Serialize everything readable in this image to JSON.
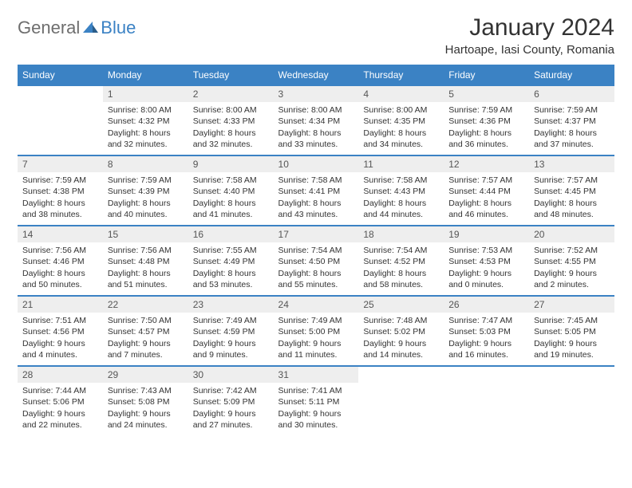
{
  "logo": {
    "general": "General",
    "blue": "Blue"
  },
  "title": "January 2024",
  "location": "Hartoape, Iasi County, Romania",
  "colors": {
    "header_bg": "#3b82c4",
    "header_text": "#ffffff",
    "daynum_bg": "#eeeeee",
    "border": "#3b82c4",
    "body_text": "#333333",
    "logo_grey": "#6e6e6e",
    "logo_blue": "#3b82c4"
  },
  "day_headers": [
    "Sunday",
    "Monday",
    "Tuesday",
    "Wednesday",
    "Thursday",
    "Friday",
    "Saturday"
  ],
  "weeks": [
    [
      null,
      {
        "n": "1",
        "sr": "Sunrise: 8:00 AM",
        "ss": "Sunset: 4:32 PM",
        "d1": "Daylight: 8 hours",
        "d2": "and 32 minutes."
      },
      {
        "n": "2",
        "sr": "Sunrise: 8:00 AM",
        "ss": "Sunset: 4:33 PM",
        "d1": "Daylight: 8 hours",
        "d2": "and 32 minutes."
      },
      {
        "n": "3",
        "sr": "Sunrise: 8:00 AM",
        "ss": "Sunset: 4:34 PM",
        "d1": "Daylight: 8 hours",
        "d2": "and 33 minutes."
      },
      {
        "n": "4",
        "sr": "Sunrise: 8:00 AM",
        "ss": "Sunset: 4:35 PM",
        "d1": "Daylight: 8 hours",
        "d2": "and 34 minutes."
      },
      {
        "n": "5",
        "sr": "Sunrise: 7:59 AM",
        "ss": "Sunset: 4:36 PM",
        "d1": "Daylight: 8 hours",
        "d2": "and 36 minutes."
      },
      {
        "n": "6",
        "sr": "Sunrise: 7:59 AM",
        "ss": "Sunset: 4:37 PM",
        "d1": "Daylight: 8 hours",
        "d2": "and 37 minutes."
      }
    ],
    [
      {
        "n": "7",
        "sr": "Sunrise: 7:59 AM",
        "ss": "Sunset: 4:38 PM",
        "d1": "Daylight: 8 hours",
        "d2": "and 38 minutes."
      },
      {
        "n": "8",
        "sr": "Sunrise: 7:59 AM",
        "ss": "Sunset: 4:39 PM",
        "d1": "Daylight: 8 hours",
        "d2": "and 40 minutes."
      },
      {
        "n": "9",
        "sr": "Sunrise: 7:58 AM",
        "ss": "Sunset: 4:40 PM",
        "d1": "Daylight: 8 hours",
        "d2": "and 41 minutes."
      },
      {
        "n": "10",
        "sr": "Sunrise: 7:58 AM",
        "ss": "Sunset: 4:41 PM",
        "d1": "Daylight: 8 hours",
        "d2": "and 43 minutes."
      },
      {
        "n": "11",
        "sr": "Sunrise: 7:58 AM",
        "ss": "Sunset: 4:43 PM",
        "d1": "Daylight: 8 hours",
        "d2": "and 44 minutes."
      },
      {
        "n": "12",
        "sr": "Sunrise: 7:57 AM",
        "ss": "Sunset: 4:44 PM",
        "d1": "Daylight: 8 hours",
        "d2": "and 46 minutes."
      },
      {
        "n": "13",
        "sr": "Sunrise: 7:57 AM",
        "ss": "Sunset: 4:45 PM",
        "d1": "Daylight: 8 hours",
        "d2": "and 48 minutes."
      }
    ],
    [
      {
        "n": "14",
        "sr": "Sunrise: 7:56 AM",
        "ss": "Sunset: 4:46 PM",
        "d1": "Daylight: 8 hours",
        "d2": "and 50 minutes."
      },
      {
        "n": "15",
        "sr": "Sunrise: 7:56 AM",
        "ss": "Sunset: 4:48 PM",
        "d1": "Daylight: 8 hours",
        "d2": "and 51 minutes."
      },
      {
        "n": "16",
        "sr": "Sunrise: 7:55 AM",
        "ss": "Sunset: 4:49 PM",
        "d1": "Daylight: 8 hours",
        "d2": "and 53 minutes."
      },
      {
        "n": "17",
        "sr": "Sunrise: 7:54 AM",
        "ss": "Sunset: 4:50 PM",
        "d1": "Daylight: 8 hours",
        "d2": "and 55 minutes."
      },
      {
        "n": "18",
        "sr": "Sunrise: 7:54 AM",
        "ss": "Sunset: 4:52 PM",
        "d1": "Daylight: 8 hours",
        "d2": "and 58 minutes."
      },
      {
        "n": "19",
        "sr": "Sunrise: 7:53 AM",
        "ss": "Sunset: 4:53 PM",
        "d1": "Daylight: 9 hours",
        "d2": "and 0 minutes."
      },
      {
        "n": "20",
        "sr": "Sunrise: 7:52 AM",
        "ss": "Sunset: 4:55 PM",
        "d1": "Daylight: 9 hours",
        "d2": "and 2 minutes."
      }
    ],
    [
      {
        "n": "21",
        "sr": "Sunrise: 7:51 AM",
        "ss": "Sunset: 4:56 PM",
        "d1": "Daylight: 9 hours",
        "d2": "and 4 minutes."
      },
      {
        "n": "22",
        "sr": "Sunrise: 7:50 AM",
        "ss": "Sunset: 4:57 PM",
        "d1": "Daylight: 9 hours",
        "d2": "and 7 minutes."
      },
      {
        "n": "23",
        "sr": "Sunrise: 7:49 AM",
        "ss": "Sunset: 4:59 PM",
        "d1": "Daylight: 9 hours",
        "d2": "and 9 minutes."
      },
      {
        "n": "24",
        "sr": "Sunrise: 7:49 AM",
        "ss": "Sunset: 5:00 PM",
        "d1": "Daylight: 9 hours",
        "d2": "and 11 minutes."
      },
      {
        "n": "25",
        "sr": "Sunrise: 7:48 AM",
        "ss": "Sunset: 5:02 PM",
        "d1": "Daylight: 9 hours",
        "d2": "and 14 minutes."
      },
      {
        "n": "26",
        "sr": "Sunrise: 7:47 AM",
        "ss": "Sunset: 5:03 PM",
        "d1": "Daylight: 9 hours",
        "d2": "and 16 minutes."
      },
      {
        "n": "27",
        "sr": "Sunrise: 7:45 AM",
        "ss": "Sunset: 5:05 PM",
        "d1": "Daylight: 9 hours",
        "d2": "and 19 minutes."
      }
    ],
    [
      {
        "n": "28",
        "sr": "Sunrise: 7:44 AM",
        "ss": "Sunset: 5:06 PM",
        "d1": "Daylight: 9 hours",
        "d2": "and 22 minutes."
      },
      {
        "n": "29",
        "sr": "Sunrise: 7:43 AM",
        "ss": "Sunset: 5:08 PM",
        "d1": "Daylight: 9 hours",
        "d2": "and 24 minutes."
      },
      {
        "n": "30",
        "sr": "Sunrise: 7:42 AM",
        "ss": "Sunset: 5:09 PM",
        "d1": "Daylight: 9 hours",
        "d2": "and 27 minutes."
      },
      {
        "n": "31",
        "sr": "Sunrise: 7:41 AM",
        "ss": "Sunset: 5:11 PM",
        "d1": "Daylight: 9 hours",
        "d2": "and 30 minutes."
      },
      null,
      null,
      null
    ]
  ]
}
